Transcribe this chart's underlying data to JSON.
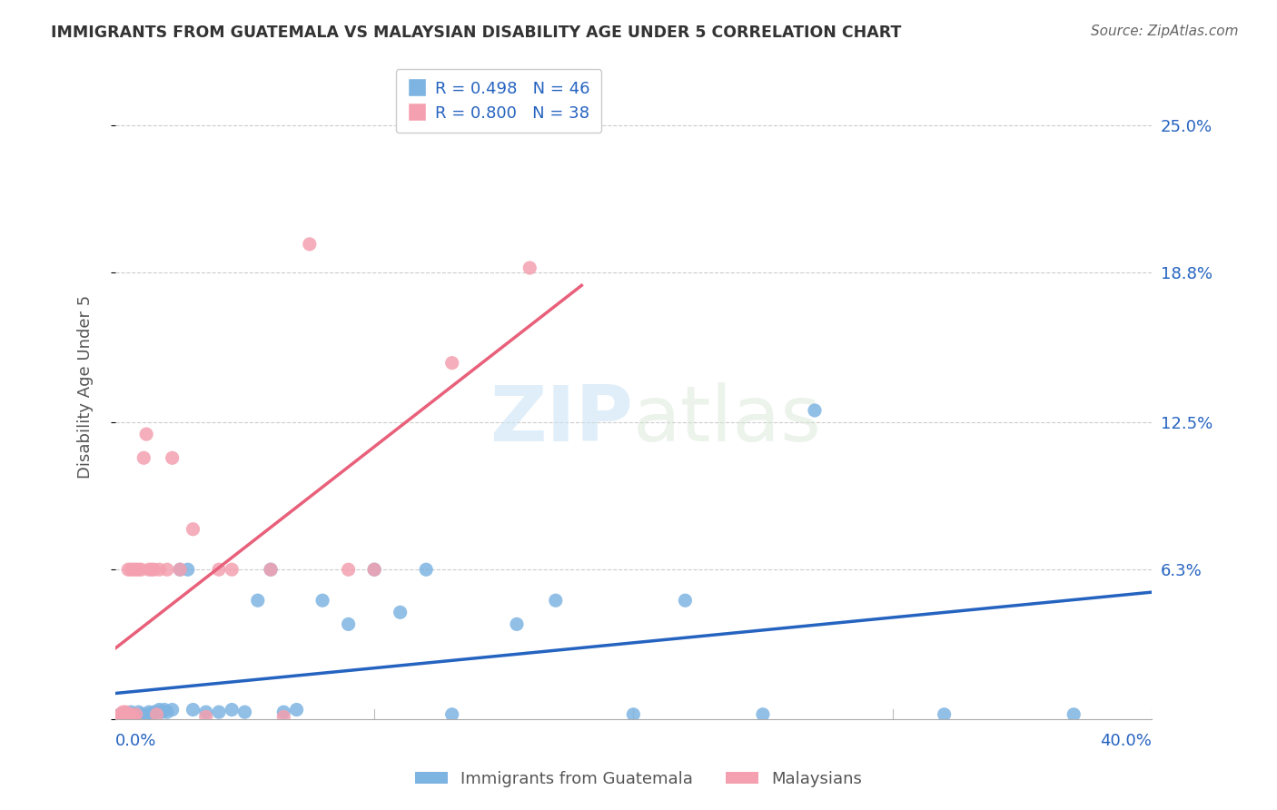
{
  "title": "IMMIGRANTS FROM GUATEMALA VS MALAYSIAN DISABILITY AGE UNDER 5 CORRELATION CHART",
  "source": "Source: ZipAtlas.com",
  "ylabel": "Disability Age Under 5",
  "yticks": [
    0.0,
    0.063,
    0.125,
    0.188,
    0.25
  ],
  "ytick_labels": [
    "",
    "6.3%",
    "12.5%",
    "18.8%",
    "25.0%"
  ],
  "xlim": [
    0.0,
    0.4
  ],
  "ylim": [
    0.0,
    0.28
  ],
  "blue_color": "#7EB4E2",
  "pink_color": "#F4A0B0",
  "blue_line_color": "#2563C0",
  "pink_line_color": "#E8607A",
  "watermark_zip": "ZIP",
  "watermark_atlas": "atlas",
  "guatemala_x": [
    0.002,
    0.003,
    0.004,
    0.005,
    0.006,
    0.006,
    0.007,
    0.008,
    0.009,
    0.01,
    0.011,
    0.012,
    0.013,
    0.014,
    0.015,
    0.016,
    0.017,
    0.018,
    0.019,
    0.02,
    0.022,
    0.025,
    0.028,
    0.03,
    0.035,
    0.04,
    0.045,
    0.05,
    0.055,
    0.06,
    0.065,
    0.07,
    0.08,
    0.09,
    0.1,
    0.11,
    0.12,
    0.13,
    0.155,
    0.17,
    0.2,
    0.22,
    0.25,
    0.27,
    0.32,
    0.37
  ],
  "guatemala_y": [
    0.002,
    0.001,
    0.001,
    0.002,
    0.001,
    0.003,
    0.002,
    0.001,
    0.003,
    0.002,
    0.002,
    0.002,
    0.003,
    0.002,
    0.003,
    0.003,
    0.004,
    0.003,
    0.004,
    0.003,
    0.004,
    0.063,
    0.063,
    0.004,
    0.003,
    0.003,
    0.004,
    0.003,
    0.05,
    0.063,
    0.003,
    0.004,
    0.05,
    0.04,
    0.063,
    0.045,
    0.063,
    0.002,
    0.04,
    0.05,
    0.002,
    0.05,
    0.002,
    0.13,
    0.002,
    0.002
  ],
  "malaysian_x": [
    0.001,
    0.002,
    0.002,
    0.003,
    0.003,
    0.004,
    0.004,
    0.005,
    0.005,
    0.006,
    0.006,
    0.007,
    0.007,
    0.008,
    0.008,
    0.009,
    0.01,
    0.011,
    0.012,
    0.013,
    0.014,
    0.015,
    0.016,
    0.017,
    0.02,
    0.022,
    0.025,
    0.03,
    0.035,
    0.04,
    0.045,
    0.06,
    0.065,
    0.075,
    0.09,
    0.1,
    0.13,
    0.16
  ],
  "malaysian_y": [
    0.001,
    0.001,
    0.002,
    0.002,
    0.003,
    0.001,
    0.003,
    0.002,
    0.063,
    0.002,
    0.063,
    0.063,
    0.001,
    0.002,
    0.063,
    0.063,
    0.063,
    0.11,
    0.12,
    0.063,
    0.063,
    0.063,
    0.002,
    0.063,
    0.063,
    0.11,
    0.063,
    0.08,
    0.001,
    0.063,
    0.063,
    0.063,
    0.001,
    0.2,
    0.063,
    0.063,
    0.15,
    0.19
  ]
}
